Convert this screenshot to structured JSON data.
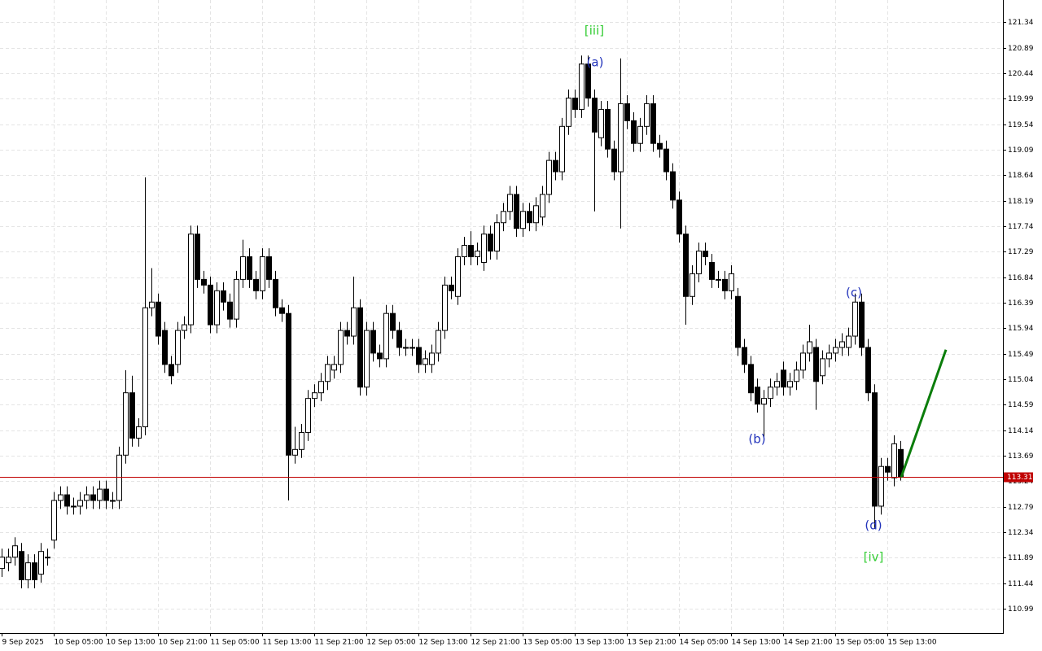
{
  "chart_data": {
    "type": "candlestick",
    "categories": [
      "9 Sep 2025",
      null,
      null,
      null,
      null,
      null,
      null,
      null,
      "10 Sep 05:00",
      null,
      null,
      null,
      null,
      null,
      null,
      null,
      "10 Sep 13:00",
      null,
      null,
      null,
      null,
      null,
      null,
      null,
      "10 Sep 21:00",
      null,
      null,
      null,
      null,
      null,
      null,
      null,
      "11 Sep 05:00",
      null,
      null,
      null,
      null,
      null,
      null,
      null,
      "11 Sep 13:00",
      null,
      null,
      null,
      null,
      null,
      null,
      null,
      "11 Sep 21:00",
      null,
      null,
      null,
      null,
      null,
      null,
      null,
      "12 Sep 05:00",
      null,
      null,
      null,
      null,
      null,
      null,
      null,
      "12 Sep 13:00",
      null,
      null,
      null,
      null,
      null,
      null,
      null,
      "12 Sep 21:00",
      null,
      null,
      null,
      null,
      null,
      null,
      null,
      "13 Sep 05:00",
      null,
      null,
      null,
      null,
      null,
      null,
      null,
      "13 Sep 13:00",
      null,
      null,
      null,
      null,
      null,
      null,
      null,
      "13 Sep 21:00",
      null,
      null,
      null,
      null,
      null,
      null,
      null,
      "14 Sep 05:00",
      null,
      null,
      null,
      null,
      null,
      null,
      null,
      "14 Sep 13:00",
      null,
      null,
      null,
      null,
      null,
      null,
      null,
      "14 Sep 21:00",
      null,
      null,
      null,
      null,
      null,
      null,
      null,
      "15 Sep 05:00",
      null,
      null,
      null,
      null,
      null,
      null,
      null,
      "15 Sep 13:00",
      null,
      null
    ],
    "open": [
      111.7,
      111.8,
      111.9,
      112.0,
      111.5,
      111.8,
      111.6,
      111.9,
      112.2,
      112.9,
      113.0,
      112.8,
      112.8,
      112.9,
      113.0,
      112.9,
      113.1,
      112.9,
      112.9,
      113.7,
      114.8,
      114.0,
      114.2,
      116.3,
      116.4,
      115.9,
      115.3,
      115.3,
      115.9,
      116.0,
      117.6,
      116.8,
      116.7,
      116.0,
      116.6,
      116.4,
      116.1,
      116.8,
      117.2,
      116.8,
      116.6,
      117.2,
      116.8,
      116.3,
      116.2,
      113.7,
      113.8,
      114.1,
      114.7,
      114.8,
      115.0,
      115.2,
      115.3,
      115.9,
      115.8,
      116.3,
      114.9,
      115.9,
      115.5,
      115.4,
      116.2,
      115.9,
      115.6,
      115.6,
      115.6,
      115.3,
      115.3,
      115.5,
      115.9,
      116.7,
      116.5,
      117.2,
      117.4,
      117.2,
      117.1,
      117.6,
      117.3,
      117.8,
      118.0,
      118.3,
      117.7,
      118.0,
      117.8,
      117.9,
      118.3,
      118.9,
      118.7,
      119.5,
      120.0,
      119.8,
      120.6,
      120.0,
      119.3,
      119.8,
      119.1,
      118.7,
      119.9,
      119.6,
      119.2,
      119.5,
      119.9,
      119.2,
      119.1,
      118.7,
      118.2,
      117.6,
      116.5,
      116.9,
      117.3,
      117.1,
      116.8,
      116.8,
      116.6,
      116.5,
      115.6,
      115.3,
      114.9,
      114.6,
      114.7,
      114.9,
      115.2,
      114.9,
      115.0,
      115.2,
      115.5,
      115.6,
      115.1,
      115.4,
      115.5,
      115.6,
      115.6,
      115.8,
      116.4,
      115.6,
      114.8,
      112.8,
      113.5,
      113.3,
      113.8
    ],
    "high": [
      112.05,
      112.05,
      112.25,
      112.15,
      111.95,
      111.95,
      112.15,
      112.05,
      113.05,
      113.15,
      113.15,
      112.95,
      113.05,
      113.15,
      113.15,
      113.25,
      113.25,
      113.05,
      113.85,
      115.2,
      115.1,
      114.35,
      118.6,
      117.0,
      116.55,
      116.05,
      115.45,
      116.05,
      116.15,
      117.75,
      117.75,
      116.95,
      116.85,
      116.75,
      116.75,
      116.55,
      116.95,
      117.5,
      117.35,
      116.95,
      117.35,
      117.35,
      116.95,
      116.45,
      116.35,
      114.2,
      114.25,
      114.85,
      114.95,
      115.15,
      115.45,
      115.45,
      116.05,
      116.05,
      116.85,
      116.45,
      116.05,
      116.05,
      115.65,
      116.35,
      116.35,
      116.05,
      115.75,
      115.75,
      115.75,
      115.55,
      115.65,
      116.05,
      116.85,
      116.85,
      117.35,
      117.55,
      117.65,
      117.45,
      117.75,
      117.75,
      117.95,
      118.15,
      118.45,
      118.45,
      118.15,
      118.15,
      118.25,
      118.45,
      119.05,
      119.05,
      119.65,
      120.15,
      120.15,
      120.75,
      120.75,
      120.15,
      119.95,
      119.95,
      119.25,
      120.7,
      120.05,
      119.75,
      119.65,
      120.05,
      120.05,
      119.35,
      119.25,
      118.85,
      118.35,
      117.75,
      117.05,
      117.45,
      117.45,
      117.25,
      116.95,
      116.95,
      117.05,
      116.65,
      115.75,
      115.45,
      115.05,
      114.85,
      115.05,
      115.15,
      115.35,
      115.15,
      115.35,
      115.65,
      116.0,
      115.75,
      115.55,
      115.65,
      115.75,
      115.85,
      115.95,
      116.55,
      116.55,
      115.75,
      114.95,
      113.65,
      113.65,
      114.05,
      113.95
    ],
    "low": [
      111.55,
      111.65,
      111.75,
      111.35,
      111.35,
      111.35,
      111.45,
      111.75,
      112.05,
      112.75,
      112.65,
      112.65,
      112.65,
      112.75,
      112.75,
      112.75,
      112.75,
      112.75,
      112.75,
      113.55,
      113.85,
      113.85,
      114.05,
      116.15,
      115.65,
      115.15,
      114.95,
      115.15,
      115.75,
      115.85,
      116.65,
      116.55,
      115.85,
      115.85,
      116.25,
      115.95,
      115.95,
      116.65,
      116.65,
      116.45,
      116.45,
      116.65,
      116.15,
      116.05,
      112.9,
      113.55,
      113.65,
      113.95,
      114.55,
      114.65,
      114.85,
      115.05,
      115.15,
      115.65,
      115.65,
      114.75,
      114.75,
      115.35,
      115.25,
      115.25,
      115.75,
      115.45,
      115.45,
      115.45,
      115.15,
      115.15,
      115.15,
      115.35,
      115.75,
      116.45,
      116.35,
      117.05,
      117.05,
      117.05,
      116.95,
      117.15,
      117.15,
      117.65,
      117.85,
      117.55,
      117.55,
      117.65,
      117.65,
      117.75,
      118.15,
      118.55,
      118.55,
      119.35,
      119.65,
      119.65,
      119.85,
      118.0,
      119.15,
      118.95,
      118.55,
      117.7,
      119.45,
      119.05,
      119.05,
      119.35,
      119.05,
      118.95,
      118.55,
      118.05,
      117.45,
      116.0,
      116.35,
      116.75,
      117.05,
      116.65,
      116.65,
      116.45,
      116.45,
      115.45,
      115.15,
      114.65,
      114.45,
      114.0,
      114.55,
      114.75,
      114.75,
      114.75,
      114.85,
      115.05,
      115.35,
      114.5,
      114.95,
      115.25,
      115.35,
      115.45,
      115.45,
      115.65,
      115.45,
      114.65,
      112.4,
      112.65,
      113.25,
      113.15,
      113.25
    ],
    "close": [
      111.9,
      111.9,
      112.1,
      111.5,
      111.8,
      111.5,
      112.0,
      111.9,
      112.9,
      113.0,
      112.8,
      112.8,
      112.9,
      113.0,
      112.9,
      113.1,
      112.9,
      112.9,
      113.7,
      114.8,
      114.0,
      114.2,
      116.3,
      116.4,
      115.8,
      115.3,
      115.1,
      115.9,
      116.0,
      117.6,
      116.8,
      116.7,
      116.0,
      116.6,
      116.4,
      116.1,
      116.8,
      117.2,
      116.8,
      116.6,
      117.2,
      116.8,
      116.3,
      116.2,
      113.7,
      113.8,
      114.1,
      114.7,
      114.8,
      115.0,
      115.3,
      115.3,
      115.9,
      115.8,
      116.3,
      114.9,
      115.9,
      115.5,
      115.4,
      116.2,
      115.9,
      115.6,
      115.6,
      115.6,
      115.3,
      115.4,
      115.5,
      115.9,
      116.7,
      116.6,
      117.2,
      117.4,
      117.2,
      117.3,
      117.6,
      117.3,
      117.8,
      118.0,
      118.3,
      117.7,
      118.0,
      117.8,
      118.1,
      118.3,
      118.9,
      118.7,
      119.5,
      120.0,
      119.8,
      120.6,
      120.0,
      119.4,
      119.8,
      119.1,
      118.7,
      119.9,
      119.6,
      119.2,
      119.5,
      119.9,
      119.2,
      119.1,
      118.7,
      118.2,
      117.6,
      116.5,
      116.9,
      117.3,
      117.2,
      116.8,
      116.8,
      116.6,
      116.9,
      115.6,
      115.3,
      114.8,
      114.6,
      114.7,
      114.9,
      115.0,
      114.9,
      115.0,
      115.2,
      115.5,
      115.7,
      115.0,
      115.4,
      115.5,
      115.6,
      115.7,
      115.8,
      116.4,
      115.6,
      114.8,
      112.8,
      113.5,
      113.4,
      113.9,
      113.31
    ],
    "ylim": [
      110.56,
      121.73
    ],
    "yticks": [
      121.34,
      120.89,
      120.44,
      119.99,
      119.54,
      119.09,
      118.64,
      118.19,
      117.74,
      117.29,
      116.84,
      116.39,
      115.94,
      115.49,
      115.04,
      114.59,
      114.14,
      113.69,
      113.24,
      112.79,
      112.34,
      111.89,
      111.44,
      110.99
    ],
    "grid": true,
    "current_price": {
      "value": 113.31,
      "color": "#c00000"
    },
    "projection": {
      "values": [
        113.31,
        115.56
      ],
      "color": "#0b7d0b"
    },
    "annotations": [
      {
        "text": "[iii]",
        "color": "#33cc33"
      },
      {
        "text": "(a)",
        "color": "#2233bb"
      },
      {
        "text": "(b)",
        "color": "#2233bb"
      },
      {
        "text": "(c)",
        "color": "#2233bb"
      },
      {
        "text": "(d)",
        "color": "#2233bb"
      },
      {
        "text": "[iv]",
        "color": "#33cc33"
      }
    ]
  }
}
